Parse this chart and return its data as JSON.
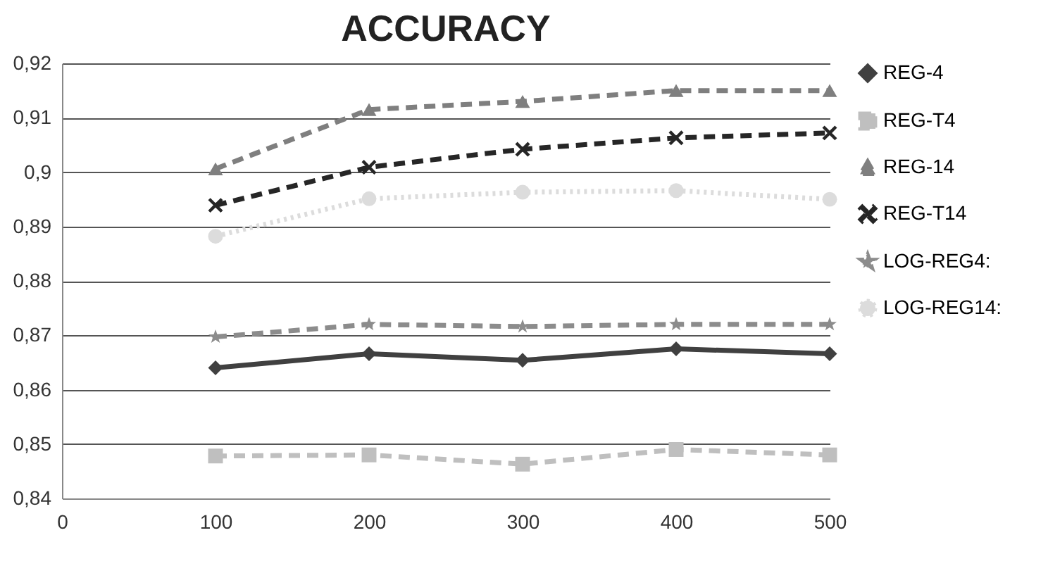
{
  "chart_data": {
    "type": "line",
    "title": "ACCURACY",
    "x": [
      100,
      200,
      300,
      400,
      500
    ],
    "xlim": [
      0,
      500
    ],
    "xticks": [
      0,
      100,
      200,
      300,
      400,
      500
    ],
    "ylim": [
      0.84,
      0.92
    ],
    "yticks": [
      {
        "value": 0.84,
        "label": "0,84"
      },
      {
        "value": 0.85,
        "label": "0,85"
      },
      {
        "value": 0.86,
        "label": "0,86"
      },
      {
        "value": 0.87,
        "label": "0,87"
      },
      {
        "value": 0.88,
        "label": "0,88"
      },
      {
        "value": 0.89,
        "label": "0,89"
      },
      {
        "value": 0.9,
        "label": "0,9"
      },
      {
        "value": 0.91,
        "label": "0,91"
      },
      {
        "value": 0.92,
        "label": "0,92"
      }
    ],
    "grid": "y",
    "legend": "right",
    "series": [
      {
        "name": "REG-4",
        "color": "#404040",
        "marker": "diamond",
        "line_style": "solid",
        "values": [
          0.864,
          0.8666,
          0.8654,
          0.8675,
          0.8666
        ]
      },
      {
        "name": "REG-T4",
        "color": "#bfbfbf",
        "marker": "square",
        "line_style": "dashed",
        "values": [
          0.8478,
          0.848,
          0.8463,
          0.849,
          0.848
        ]
      },
      {
        "name": "REG-14",
        "color": "#7f7f7f",
        "marker": "triangle",
        "line_style": "dashed",
        "values": [
          0.9006,
          0.9115,
          0.913,
          0.915,
          0.915
        ]
      },
      {
        "name": "REG-T14",
        "color": "#262626",
        "marker": "cross",
        "line_style": "dashed",
        "values": [
          0.8939,
          0.9009,
          0.9042,
          0.9063,
          0.9072
        ]
      },
      {
        "name": "LOG-REG4:",
        "color": "#8c8c8c",
        "marker": "star",
        "line_style": "dashed",
        "values": [
          0.8697,
          0.872,
          0.8716,
          0.872,
          0.872
        ]
      },
      {
        "name": "LOG-REG14:",
        "color": "#dcdcdc",
        "marker": "circle",
        "line_style": "dotted",
        "values": [
          0.8882,
          0.8951,
          0.8963,
          0.8966,
          0.895
        ]
      }
    ]
  }
}
